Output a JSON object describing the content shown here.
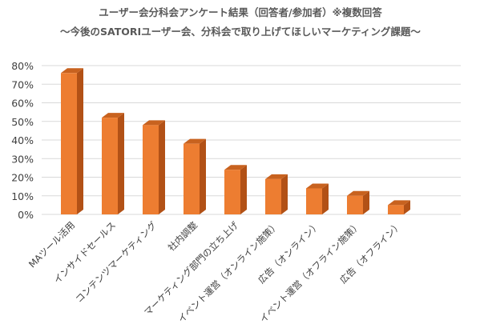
{
  "chart_data": {
    "type": "bar",
    "title": "ユーザー会分科会アンケート結果（回答者/参加者）※複数回答",
    "subtitle": "～今後のSATORIユーザー会、分科会で取り上げてほしいマーケティング課題～",
    "xlabel": "",
    "ylabel": "",
    "ylim": [
      0,
      80
    ],
    "yticks": [
      "0%",
      "10%",
      "20%",
      "30%",
      "40%",
      "50%",
      "60%",
      "70%",
      "80%"
    ],
    "yticks_values": [
      0,
      10,
      20,
      30,
      40,
      50,
      60,
      70,
      80
    ],
    "grid": true,
    "legend": "none",
    "categories": [
      "MAツール活用",
      "インサイドセールス",
      "コンテンツマーケティング",
      "社内調整",
      "マーケティング部門の立ち上げ",
      "イベント運営（オンライン施策）",
      "広告（オンライン）",
      "イベント運営（オフライン施策）",
      "広告（オフライン）"
    ],
    "values": [
      76,
      52,
      48,
      38,
      24,
      19,
      14,
      10,
      5
    ],
    "colors": {
      "front": "#ED7D31",
      "side": "#B25116",
      "top": "#C8621F",
      "grid": "#D9D9D9"
    }
  }
}
